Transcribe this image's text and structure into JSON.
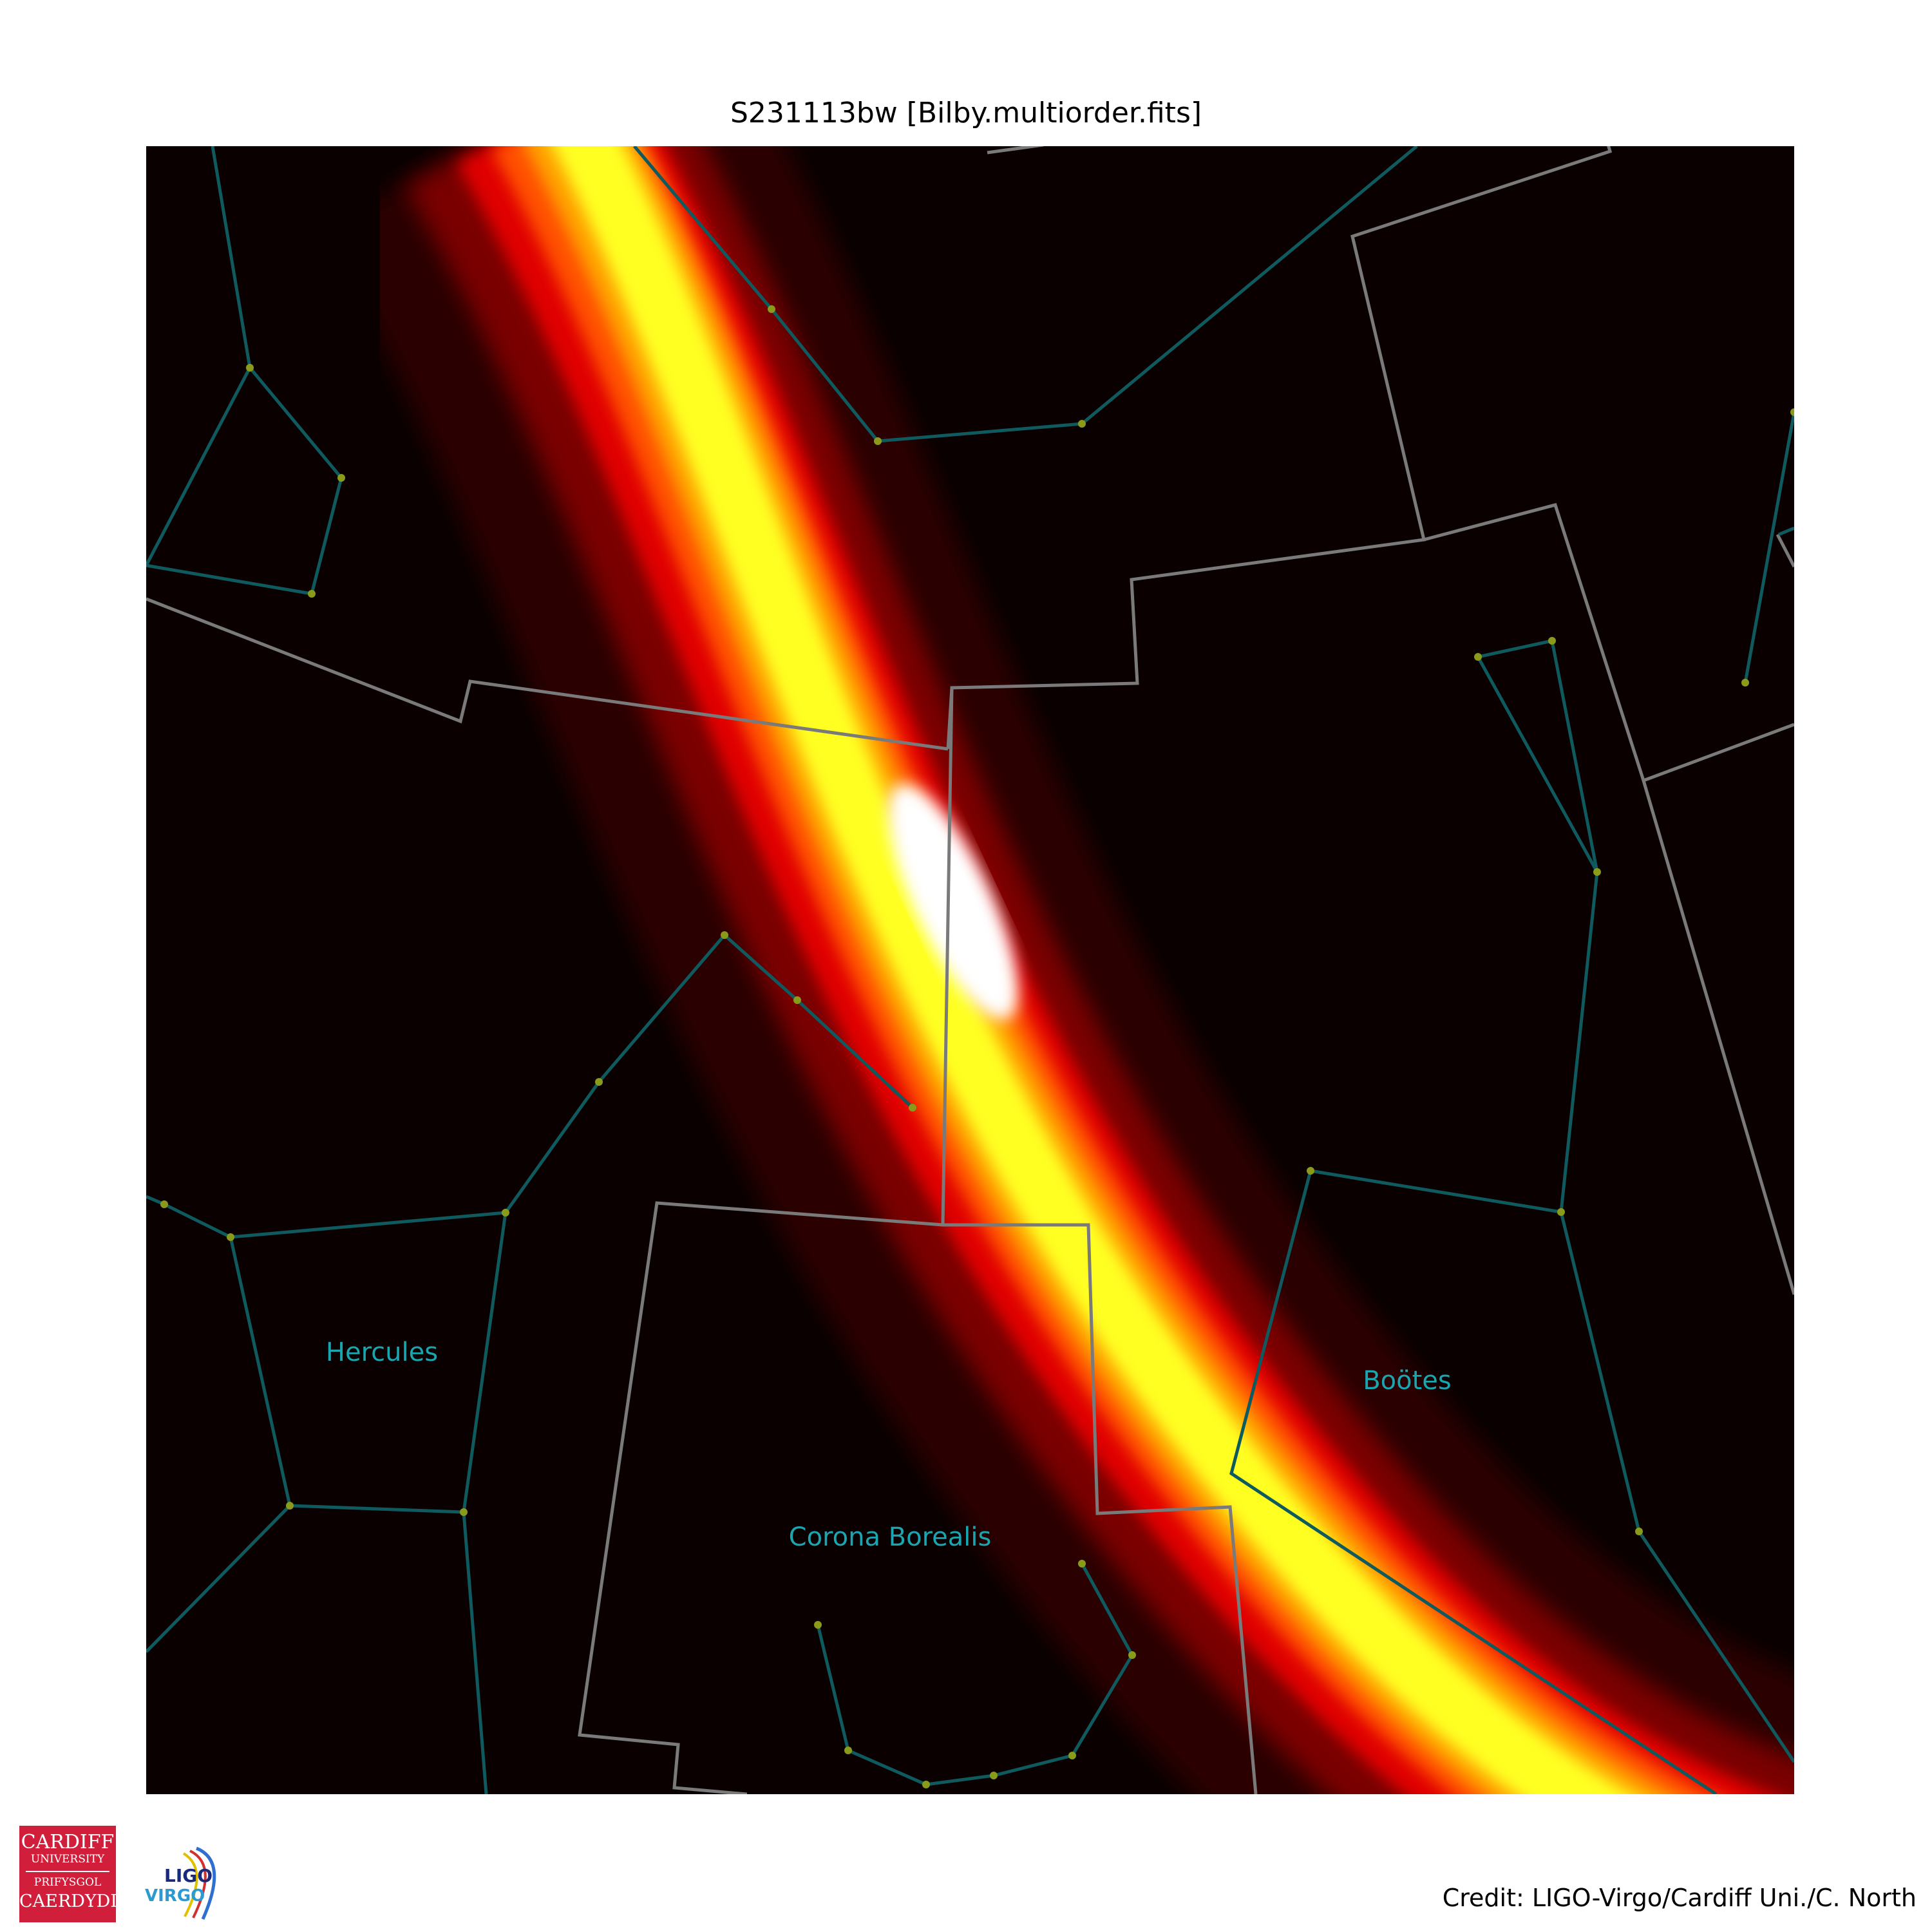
{
  "title": "S231113bw [Bilby.multiorder.fits]",
  "credit": "Credit: LIGO-Virgo/Cardiff Uni./C. North",
  "constellations": [
    "Hercules",
    "Boötes",
    "Corona Borealis"
  ],
  "logos": {
    "cardiff": [
      "CARDIFF",
      "UNIVERSITY",
      "PRIFYSGOL",
      "CAERDYDD"
    ],
    "ligo_virgo": [
      "LIGO",
      "VIRGO"
    ]
  },
  "colors": {
    "background": "#0a0000",
    "constellation_lines": "#0f5a5e",
    "boundaries": "#7a7a7a",
    "stars": "#8a9a1a",
    "labels": "#1aa6b0"
  }
}
